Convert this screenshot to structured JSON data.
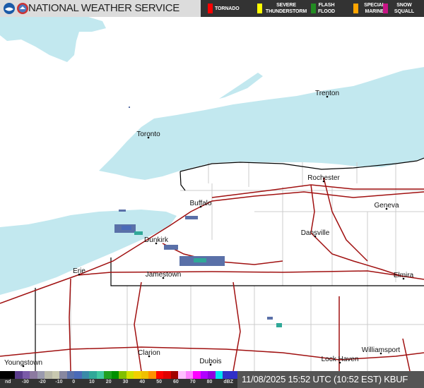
{
  "header": {
    "title": "NATIONAL WEATHER SERVICE",
    "logos": [
      "noaa-logo",
      "nws-logo"
    ]
  },
  "warnings": [
    {
      "label": "TORNADO",
      "color": "#ff0000"
    },
    {
      "label": "SEVERE THUNDERSTORM",
      "color": "#ffff00"
    },
    {
      "label": "FLASH FLOOD",
      "color": "#228b22"
    },
    {
      "label": "SPECIAL MARINE",
      "color": "#ffa500"
    },
    {
      "label": "SNOW SQUALL",
      "color": "#c71585"
    }
  ],
  "cities": [
    "Trenton",
    "Toronto",
    "Rochester",
    "Buffalo",
    "Geneva",
    "Dansville",
    "Dunkirk",
    "Erie",
    "Jamestown",
    "Elmira",
    "Clarion",
    "Dubois",
    "Lock Haven",
    "Williamsport",
    "Youngstown"
  ],
  "colors": {
    "water": "#c2e8ef",
    "roads": "#a01010",
    "state_line": "#000000",
    "county_lines": "#cccccc"
  },
  "legend": {
    "ticks": [
      "nd",
      "-30",
      "-20",
      "-10",
      "0",
      "10",
      "20",
      "30",
      "40",
      "50",
      "60",
      "70",
      "80",
      "dBZ"
    ],
    "scale": [
      "#000000",
      "#000000",
      "#5a3c8c",
      "#7a5aa8",
      "#8c7aa0",
      "#9a9aae",
      "#b8b8a8",
      "#c8c8b0",
      "#8888a0",
      "#5a70a8",
      "#4a6ab8",
      "#3a8aa8",
      "#30a898",
      "#40c8a0",
      "#20a020",
      "#009000",
      "#80c000",
      "#d0e000",
      "#f0d000",
      "#f0c000",
      "#ff9000",
      "#ff0000",
      "#e00000",
      "#a00000",
      "#ffc0ff",
      "#ff80ff",
      "#ff00ff",
      "#b000ff",
      "#9000e0",
      "#00e0f0",
      "#3030c8",
      "#3030c8"
    ]
  },
  "status": {
    "timestamp": "11/08/2025 15:52 UTC (10:52 EST)",
    "station": "KBUF"
  }
}
